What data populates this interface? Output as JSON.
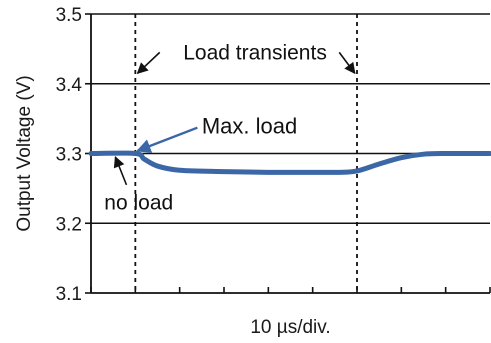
{
  "colors": {
    "series": "#3b67a6",
    "grid": "#111111",
    "axis": "#111111",
    "text": "#1a1a1a"
  },
  "chart_data": {
    "type": "line",
    "title": "",
    "xlabel": "10 µs/div.",
    "ylabel": "Output Voltage (V)",
    "xlim": [
      0,
      9
    ],
    "ylim": [
      3.1,
      3.5
    ],
    "y_ticks": [
      "3.1",
      "3.2",
      "3.3",
      "3.4",
      "3.5"
    ],
    "x_tick_divisions": 9,
    "grid": "horizontal",
    "legend": "none",
    "markers": [
      {
        "x": 1.0,
        "style": "dashed",
        "label": "Load transients"
      },
      {
        "x": 6.0,
        "style": "dashed",
        "label": "Load transients"
      }
    ],
    "series": [
      {
        "x": [
          0,
          1.0,
          1.2,
          1.5,
          2.0,
          3.0,
          4.0,
          5.0,
          5.6,
          6.0,
          6.5,
          7.0,
          7.5,
          8.0,
          9.0
        ],
        "values": [
          3.3,
          3.3,
          3.292,
          3.282,
          3.276,
          3.274,
          3.273,
          3.273,
          3.273,
          3.275,
          3.285,
          3.294,
          3.299,
          3.3,
          3.3
        ]
      }
    ],
    "annotations": [
      {
        "text": "Load transients",
        "x": 3.7,
        "y": 3.445
      },
      {
        "text": "Max. load",
        "x": 2.5,
        "y": 3.34,
        "arrow_to": [
          1.05,
          3.301
        ]
      },
      {
        "text": "no load",
        "x": 0.3,
        "y": 3.23,
        "arrow_to": [
          0.55,
          3.295
        ]
      }
    ]
  }
}
